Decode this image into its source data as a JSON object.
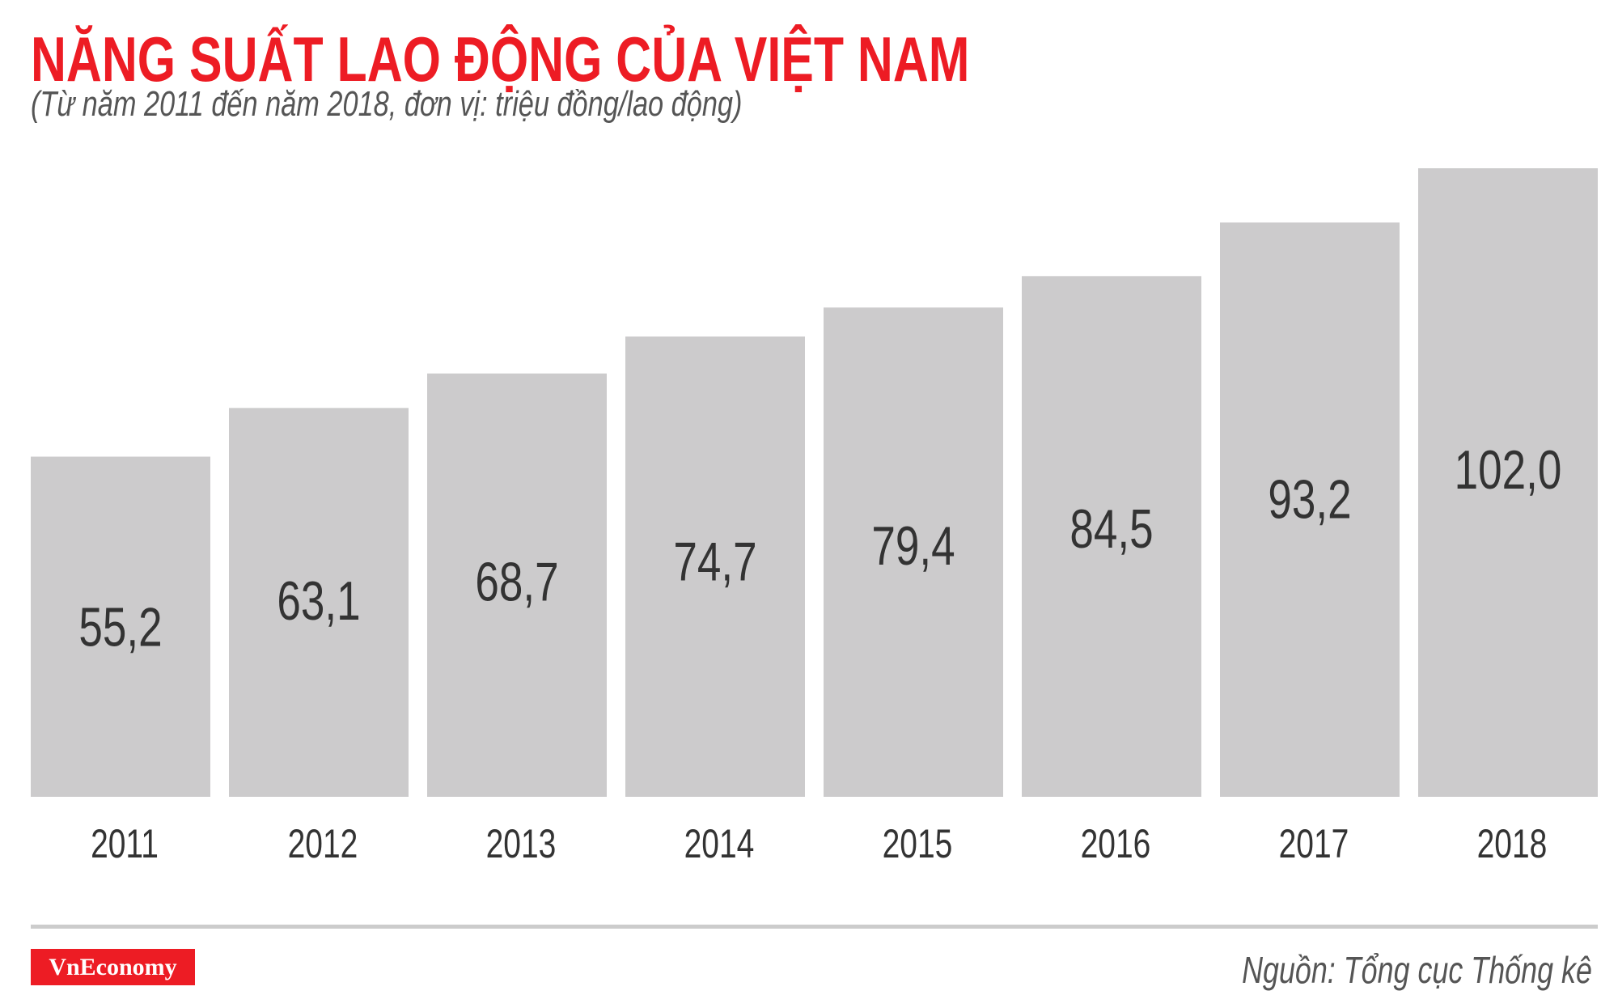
{
  "header": {
    "title": "NĂNG SUẤT LAO ĐỘNG CỦA VIỆT NAM",
    "subtitle": "(Từ năm 2011 đến năm 2018, đơn vị: triệu đồng/lao động)"
  },
  "footer": {
    "logo": "VnEconomy",
    "source": "Nguồn: Tổng cục Thống kê"
  },
  "colors": {
    "bar": "#cccbcc",
    "title": "#ed1c24",
    "label": "#333333"
  },
  "chart_data": {
    "type": "bar",
    "title": "NĂNG SUẤT LAO ĐỘNG CỦA VIỆT NAM",
    "subtitle": "(Từ năm 2011 đến năm 2018, đơn vị: triệu đồng/lao động)",
    "categories": [
      "2011",
      "2012",
      "2013",
      "2014",
      "2015",
      "2016",
      "2017",
      "2018"
    ],
    "values": [
      55.2,
      63.1,
      68.7,
      74.7,
      79.4,
      84.5,
      93.2,
      102.0
    ],
    "value_labels": [
      "55,2",
      "63,1",
      "68,7",
      "74,7",
      "79,4",
      "84,5",
      "93,2",
      "102,0"
    ],
    "xlabel": "",
    "ylabel": "",
    "ylim": [
      0,
      102
    ],
    "grid": false,
    "legend": "none"
  }
}
